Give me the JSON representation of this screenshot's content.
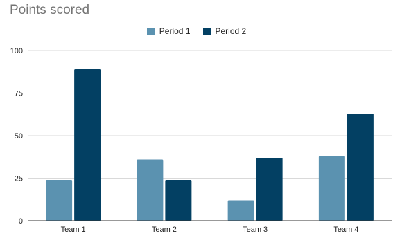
{
  "chart_data": {
    "type": "bar",
    "title": "Points scored",
    "xlabel": "",
    "ylabel": "",
    "categories": [
      "Team 1",
      "Team 2",
      "Team 3",
      "Team 4"
    ],
    "series": [
      {
        "name": "Period 1",
        "color": "#5b92b0",
        "values": [
          24,
          36,
          12,
          38
        ]
      },
      {
        "name": "Period 2",
        "color": "#034063",
        "values": [
          89,
          24,
          37,
          63
        ]
      }
    ],
    "ylim": [
      0,
      100
    ],
    "yticks": [
      "0",
      "25",
      "50",
      "75",
      "100"
    ],
    "grid": true,
    "legend_position": "top-center"
  }
}
